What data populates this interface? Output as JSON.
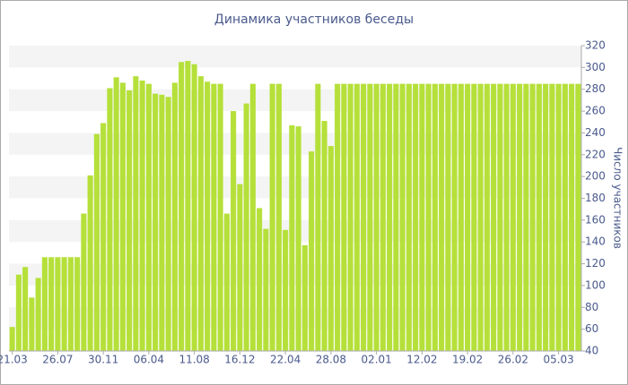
{
  "chart_data": {
    "type": "bar",
    "title": "Динамика участников беседы",
    "y_label": "Число участников",
    "categories": [
      "21.03",
      null,
      null,
      null,
      null,
      null,
      null,
      "26.07",
      null,
      null,
      null,
      null,
      null,
      null,
      "30.11",
      null,
      null,
      null,
      null,
      null,
      null,
      "06.04",
      null,
      null,
      null,
      null,
      null,
      null,
      "11.08",
      null,
      null,
      null,
      null,
      null,
      null,
      "16.12",
      null,
      null,
      null,
      null,
      null,
      null,
      "22.04",
      null,
      null,
      null,
      null,
      null,
      null,
      "28.08",
      null,
      null,
      null,
      null,
      null,
      null,
      "02.01",
      null,
      null,
      null,
      null,
      null,
      null,
      "12.02",
      null,
      null,
      null,
      null,
      null,
      null,
      "19.02",
      null,
      null,
      null,
      null,
      null,
      null,
      "26.02",
      null,
      null,
      null,
      null,
      null,
      null,
      "05.03",
      null,
      null,
      null
    ],
    "values": [
      62,
      110,
      117,
      89,
      107,
      126,
      126,
      126,
      126,
      126,
      126,
      166,
      201,
      239,
      249,
      281,
      291,
      286,
      279,
      292,
      288,
      285,
      276,
      275,
      273,
      286,
      305,
      306,
      303,
      292,
      287,
      285,
      285,
      166,
      260,
      193,
      267,
      285,
      171,
      152,
      285,
      285,
      151,
      247,
      246,
      137,
      223,
      285,
      251,
      228,
      285,
      285,
      285,
      285,
      285,
      285,
      285,
      285,
      285,
      285,
      285,
      285,
      285,
      285,
      285,
      285,
      285,
      285,
      285,
      285,
      285,
      285,
      285,
      285,
      285,
      285,
      285,
      285,
      285,
      285,
      285,
      285,
      285,
      285,
      285,
      285,
      285,
      285
    ],
    "color": "#b5e03a",
    "ylim": [
      40,
      320
    ],
    "yticks": [
      40,
      60,
      80,
      100,
      120,
      140,
      160,
      180,
      200,
      220,
      240,
      260,
      280,
      300,
      320
    ],
    "grid": true
  }
}
